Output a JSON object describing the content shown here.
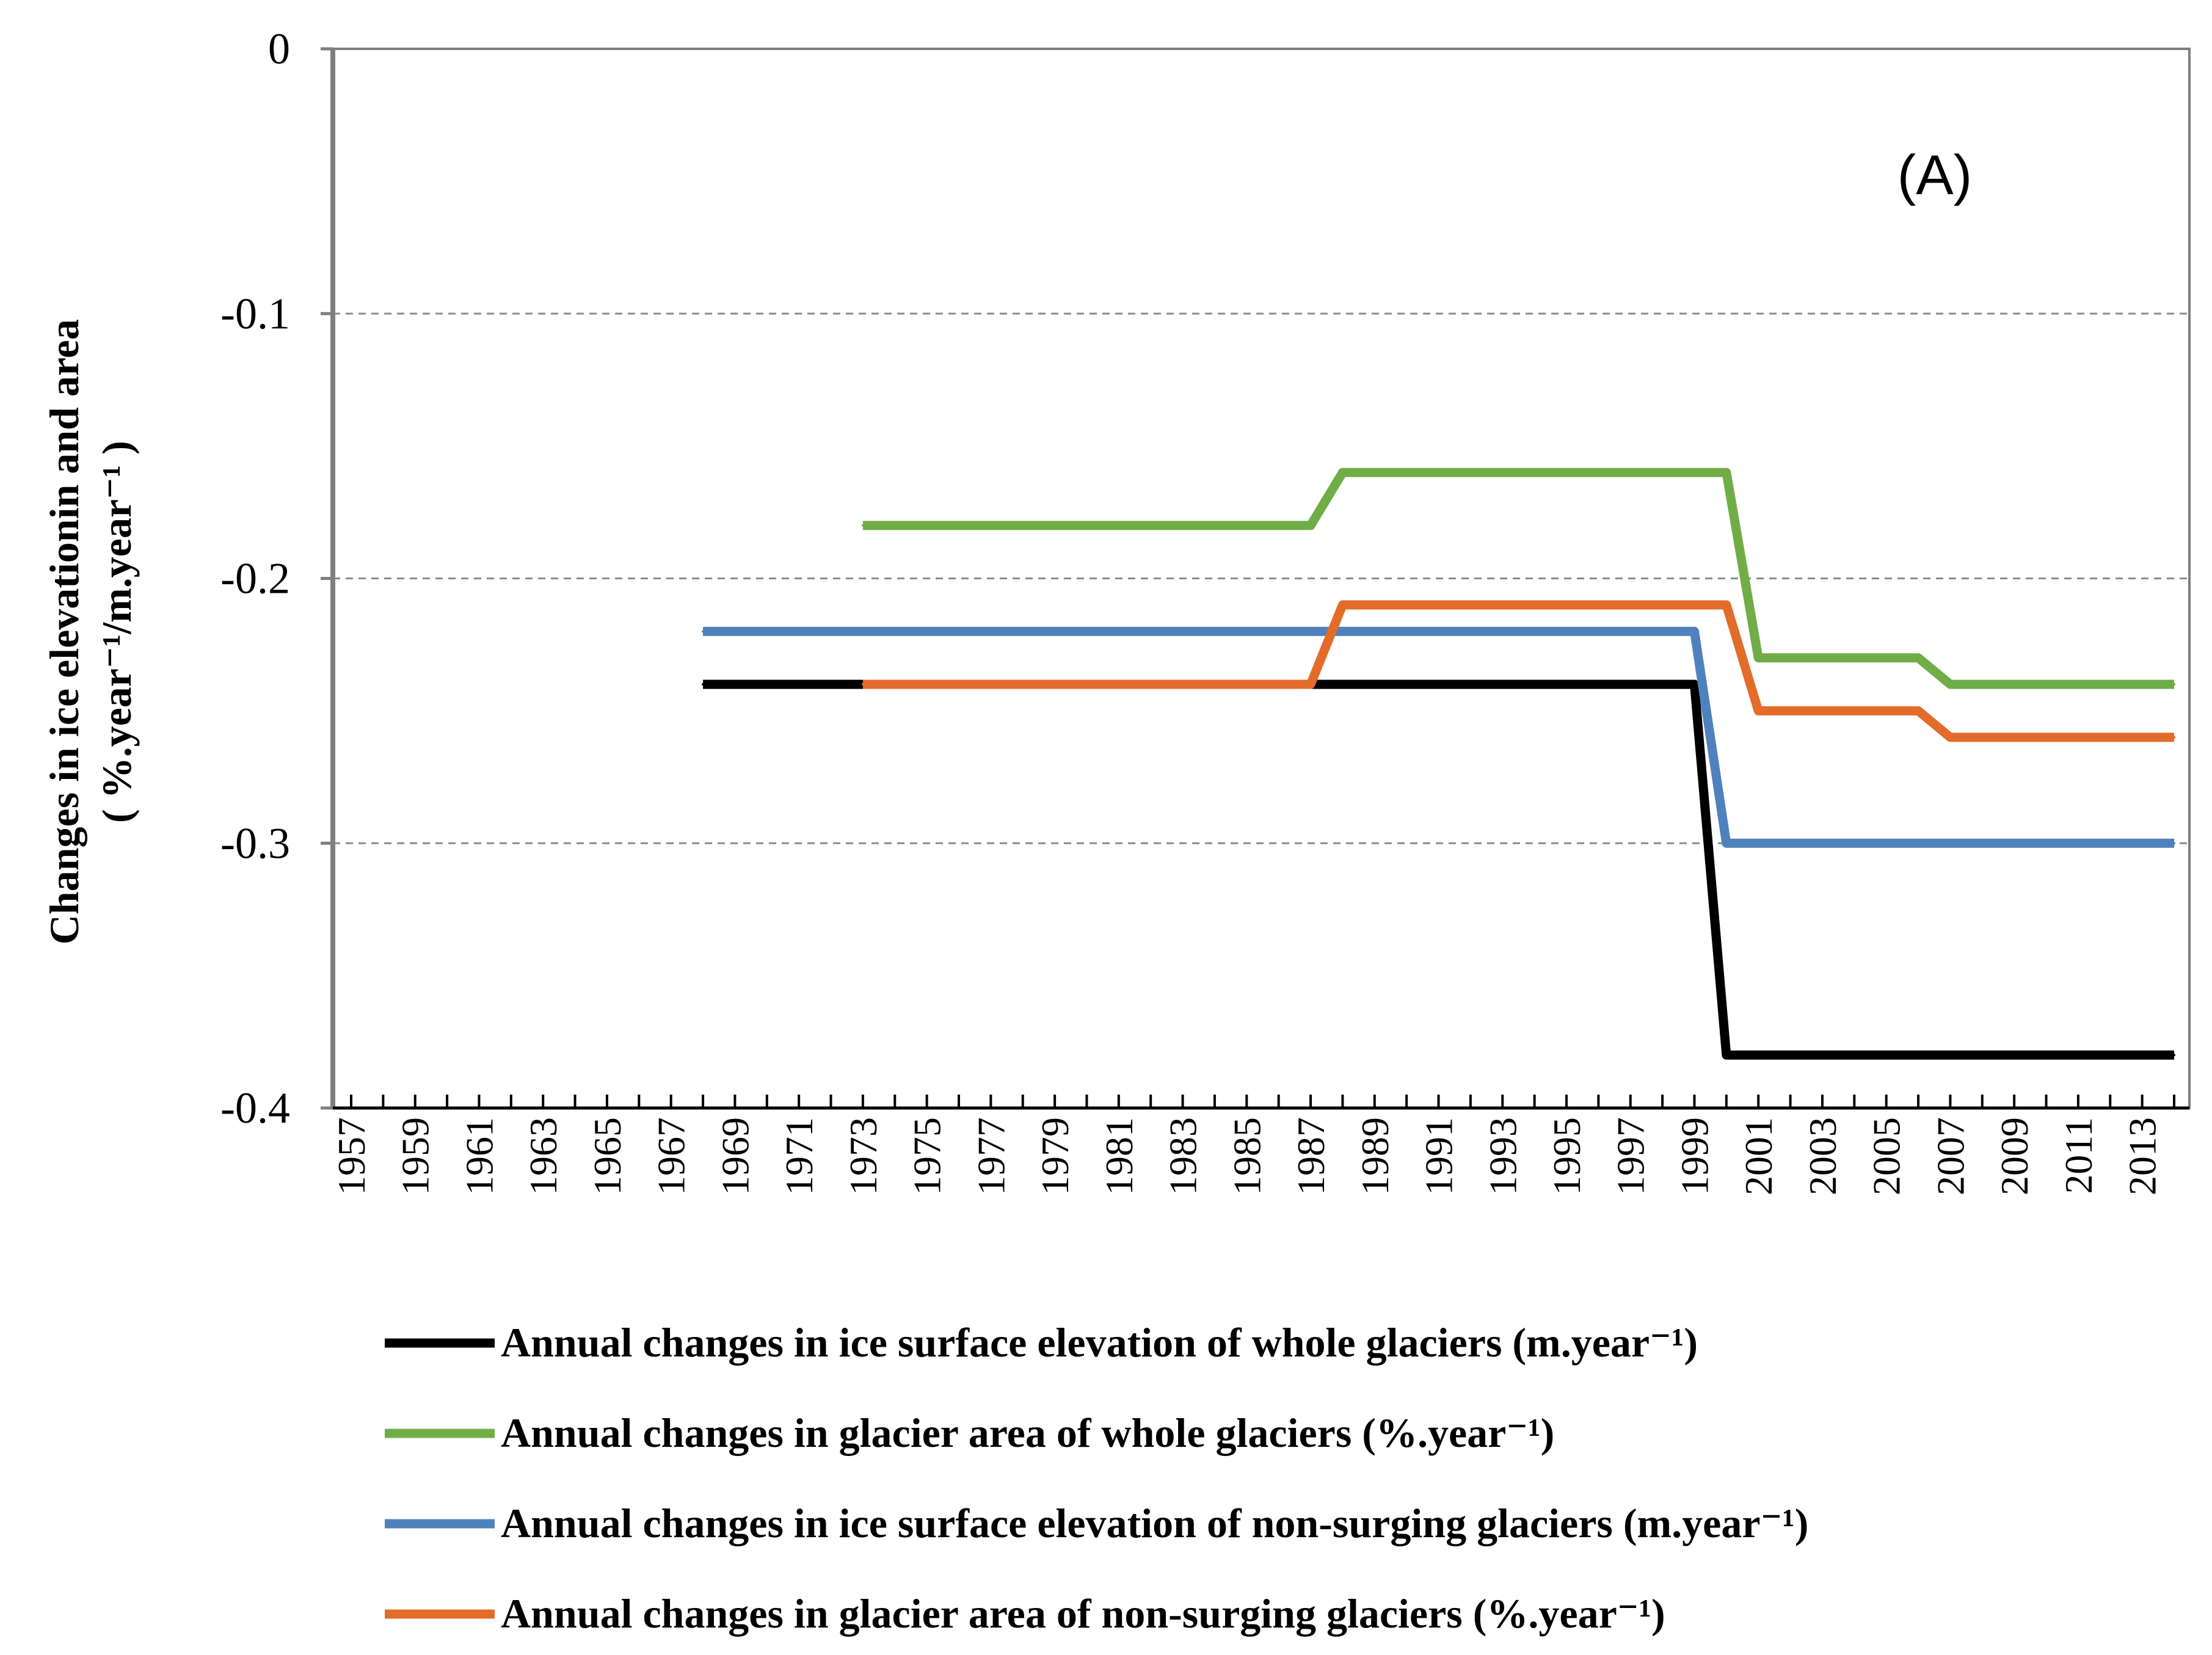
{
  "chart_data": {
    "type": "line",
    "panel_label": "(A)",
    "ylabel_line1": "Changes in ice elevationin and area",
    "ylabel_line2": "( %.year⁻¹/m.year⁻¹ )",
    "xlabel": "",
    "ylim": [
      -0.4,
      0
    ],
    "y_ticks": [
      0,
      -0.1,
      -0.2,
      -0.3,
      -0.4
    ],
    "y_tick_labels": [
      "0",
      "-0.1",
      "-0.2",
      "-0.3",
      "-0.4"
    ],
    "grid": "horizontal dashed",
    "x_range": [
      1957,
      2014
    ],
    "x_tick_labels": [
      "1957",
      "1959",
      "1961",
      "1963",
      "1965",
      "1967",
      "1969",
      "1971",
      "1973",
      "1975",
      "1977",
      "1979",
      "1981",
      "1983",
      "1985",
      "1987",
      "1989",
      "1991",
      "1993",
      "1995",
      "1997",
      "1999",
      "2001",
      "2003",
      "2005",
      "2007",
      "2009",
      "2011",
      "2013"
    ],
    "legend_position": "bottom",
    "series": [
      {
        "name": "Annual changes in ice surface elevation of whole glaciers (m.year⁻¹)",
        "color": "#000000",
        "x": [
          1968,
          1999,
          2000,
          2014
        ],
        "y": [
          -0.24,
          -0.24,
          -0.38,
          -0.38
        ]
      },
      {
        "name": "Annual changes in glacier area of whole glaciers (%.year⁻¹)",
        "color": "#70ad47",
        "x": [
          1973,
          1987,
          1988,
          2000,
          2001,
          2006,
          2007,
          2014
        ],
        "y": [
          -0.18,
          -0.18,
          -0.16,
          -0.16,
          -0.23,
          -0.23,
          -0.24,
          -0.24
        ]
      },
      {
        "name": "Annual changes in ice surface elevation of non-surging glaciers (m.year⁻¹)",
        "color": "#4f81bd",
        "x": [
          1968,
          1999,
          2000,
          2014
        ],
        "y": [
          -0.22,
          -0.22,
          -0.3,
          -0.3
        ]
      },
      {
        "name": "Annual changes in glacier area of non-surging glaciers (%.year⁻¹)",
        "color": "#e36c2a",
        "x": [
          1973,
          1987,
          1988,
          2000,
          2001,
          2006,
          2007,
          2014
        ],
        "y": [
          -0.24,
          -0.24,
          -0.21,
          -0.21,
          -0.25,
          -0.25,
          -0.26,
          -0.26
        ]
      }
    ]
  }
}
